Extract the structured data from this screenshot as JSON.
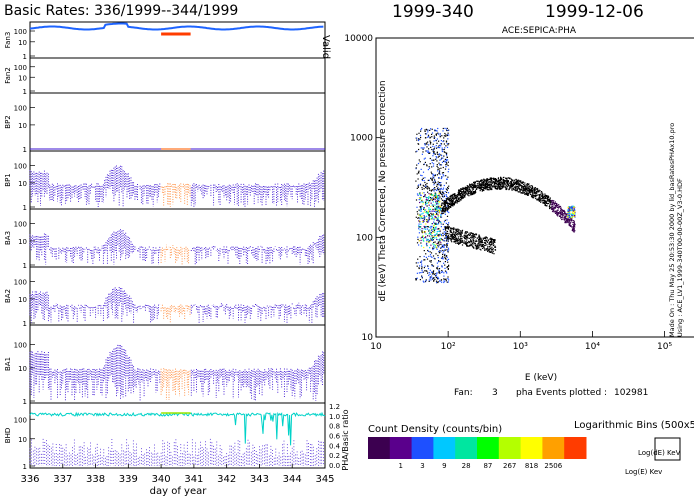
{
  "header": {
    "left_title": "Basic Rates: 336/1999--344/1999",
    "doy": "1999-340",
    "date": "1999-12-06"
  },
  "left": {
    "xlabel": "day of year",
    "xticks": [
      "336",
      "337",
      "338",
      "339",
      "340",
      "341",
      "342",
      "343",
      "344",
      "345"
    ],
    "right_label": "Valid",
    "panels": [
      {
        "name": "Fan3",
        "ticks": [
          "100",
          "10",
          "1"
        ]
      },
      {
        "name": "Fan2",
        "ticks": [
          "100",
          "10",
          "1"
        ]
      },
      {
        "name": "BP2",
        "ticks": [
          "100",
          "10",
          "1"
        ]
      },
      {
        "name": "BP1",
        "ticks": [
          "100",
          "10",
          "1"
        ]
      },
      {
        "name": "BA3",
        "ticks": [
          "100",
          "10",
          "1"
        ]
      },
      {
        "name": "BA2",
        "ticks": [
          "100",
          "10",
          "1"
        ]
      },
      {
        "name": "BA1",
        "ticks": [
          "100",
          "10",
          "1"
        ]
      },
      {
        "name": "BHD",
        "ticks": [
          "100",
          "10",
          "1"
        ]
      }
    ],
    "ratio_ticks": [
      "1.2",
      "1.0",
      "0.8",
      "0.6",
      "0.4",
      "0.2",
      "0.0"
    ],
    "ratio_label": "PHA/Basic ratio"
  },
  "chart_data": {
    "type": "heatmap",
    "title": "ACE:SEPICA:PHA",
    "xlabel": "E (keV)",
    "ylabel": "dE (keV) Theta Corrected, No pressure correction",
    "x_scale": "log",
    "y_scale": "log",
    "xlim": [
      10,
      300000
    ],
    "ylim": [
      10,
      10000
    ],
    "xticks": [
      "10",
      "10²",
      "10³",
      "10⁴",
      "10⁵"
    ],
    "yticks": [
      "10000",
      "1000",
      "100",
      "10"
    ],
    "x_tick_values": [
      10,
      100,
      1000,
      10000,
      100000
    ],
    "y_tick_values": [
      10000,
      1000,
      100,
      10
    ],
    "fan_label": "Fan:",
    "fan": "3",
    "events_label": "pha Events plotted :",
    "events": "102981",
    "bins_title": "Logarithmic Bins (500x500)",
    "density_title": "Count Density (counts/bin)",
    "density_bins": [
      "1",
      "3",
      "9",
      "28",
      "87",
      "267",
      "818",
      "2506"
    ],
    "density_colors": [
      "#3c0050",
      "#5a008c",
      "#1e50ff",
      "#00c8ff",
      "#00e6a0",
      "#00ff00",
      "#b4ff00",
      "#ffff00",
      "#ffa000",
      "#ff3c00"
    ],
    "legend_box_y": "Log(dE) KeV",
    "legend_box_x": "Log(E) Kev",
    "footer_lines": [
      "Made On : Thu May 25 20:53:30 2000   by lid_basRatesPHAx10.pro",
      "Using : ACE_LV1_1999-340T00-00-00Z_V3-0.HDF"
    ]
  }
}
